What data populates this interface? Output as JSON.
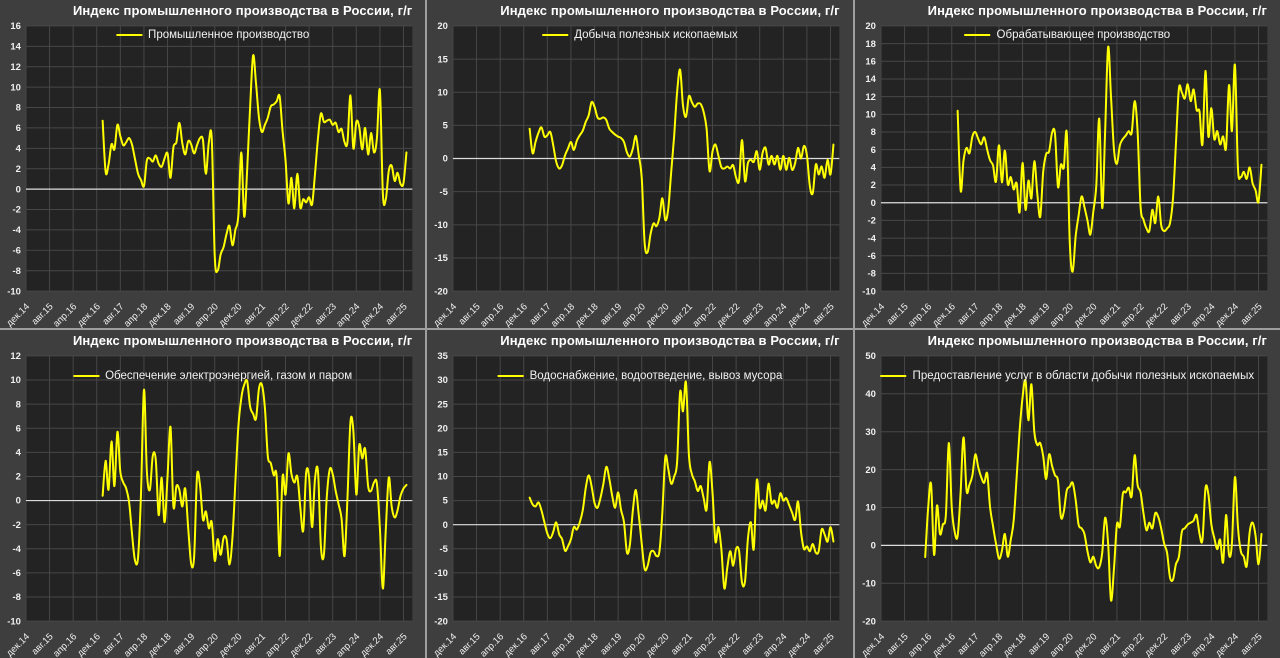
{
  "app": {
    "kind": "six-panel line chart dashboard",
    "colors": {
      "page_separator": "#9e9e9e",
      "panel_bg": "#3e3e3e",
      "plot_bg": "#232323",
      "grid": "#474747",
      "zero_line": "#dcdcdc",
      "text": "#f0f0f0",
      "title": "#ffffff",
      "series": "#ffff00"
    }
  },
  "x_axis": {
    "origin": "дек.14",
    "months_per_tick": 8,
    "domain_months": [
      0,
      131
    ],
    "tick_labels": [
      "дек.14",
      "авг.15",
      "апр.16",
      "дек.16",
      "авг.17",
      "апр.18",
      "дек.18",
      "авг.19",
      "апр.20",
      "дек.20",
      "авг.21",
      "апр.22",
      "дек.22",
      "авг.23",
      "апр.24",
      "дек.24",
      "авг.25"
    ]
  },
  "chart_data": [
    {
      "type": "line",
      "title": "Индекс промышленного производства в России, г/г",
      "ylim": [
        -10,
        16
      ],
      "y_step": 2,
      "grid": true,
      "legend_position": "top-center",
      "series": [
        {
          "name": "Промышленное производство",
          "color": "#ffff00",
          "start_month": 26,
          "values": [
            6.7,
            1.7,
            2.4,
            4.4,
            3.9,
            6.3,
            5.2,
            4.3,
            4.6,
            5.0,
            4.3,
            2.9,
            1.5,
            0.9,
            0.3,
            2.8,
            3.0,
            2.7,
            3.3,
            2.5,
            2.2,
            3.0,
            3.5,
            1.1,
            4.1,
            4.6,
            6.5,
            4.5,
            3.4,
            4.7,
            4.4,
            3.5,
            4.3,
            5.0,
            4.8,
            1.5,
            4.6,
            4.9,
            -6.6,
            -8.0,
            -6.4,
            -5.7,
            -4.4,
            -3.6,
            -5.5,
            -4.0,
            -2.6,
            3.6,
            -2.7,
            2.0,
            8.0,
            13.1,
            10.4,
            7.0,
            5.6,
            6.3,
            7.0,
            8.1,
            8.3,
            8.6,
            9.1,
            5.7,
            2.8,
            -1.4,
            1.1,
            -1.9,
            1.5,
            -1.8,
            -1.0,
            -1.3,
            -0.8,
            -1.5,
            1.5,
            5.0,
            7.4,
            6.6,
            6.7,
            6.8,
            6.3,
            6.5,
            5.6,
            5.9,
            4.6,
            4.6,
            9.2,
            4.0,
            6.6,
            6.1,
            3.9,
            6.0,
            3.4,
            5.5,
            3.6,
            5.0,
            9.7,
            -0.5,
            -1.0,
            1.8,
            2.3,
            0.8,
            1.6,
            0.5,
            0.6,
            3.6
          ]
        }
      ]
    },
    {
      "type": "line",
      "title": "Индекс промышленного производства в России, г/г",
      "ylim": [
        -20,
        20
      ],
      "y_step": 5,
      "grid": true,
      "legend_position": "top-center",
      "series": [
        {
          "name": "Добыча полезных ископаемых",
          "color": "#ffff00",
          "start_month": 26,
          "values": [
            4.5,
            0.8,
            2.5,
            3.9,
            4.7,
            3.3,
            3.5,
            4.0,
            2.0,
            -0.5,
            -1.5,
            -1.0,
            0.5,
            1.5,
            2.5,
            1.3,
            2.7,
            3.5,
            4.2,
            5.5,
            6.5,
            8.5,
            7.8,
            6.2,
            6.0,
            6.2,
            5.8,
            4.5,
            4.0,
            3.6,
            3.3,
            3.1,
            2.5,
            0.9,
            0.3,
            1.5,
            3.4,
            0.5,
            -3.0,
            -12.8,
            -14.1,
            -11.4,
            -9.8,
            -10.2,
            -8.9,
            -6.0,
            -9.3,
            -7.5,
            -2.0,
            3.5,
            10.0,
            13.4,
            8.0,
            6.3,
            9.4,
            8.5,
            7.8,
            8.3,
            8.2,
            7.0,
            4.4,
            -1.9,
            1.1,
            2.1,
            0.4,
            -1.3,
            -1.5,
            -1.2,
            -1.5,
            -1.0,
            -2.9,
            -3.3,
            2.8,
            -3.4,
            -0.7,
            -0.2,
            -0.5,
            1.1,
            -1.7,
            0.9,
            1.6,
            -0.9,
            0.4,
            -0.9,
            0.4,
            -1.7,
            0.4,
            -1.7,
            0.1,
            -1.7,
            -0.7,
            1.6,
            0,
            1.9,
            0.5,
            -4.2,
            -5.2,
            -0.9,
            -2.4,
            -1.2,
            -2.9,
            -0.2,
            -2.4,
            2.1
          ]
        }
      ]
    },
    {
      "type": "line",
      "title": "Индекс промышленного производства в России, г/г",
      "ylim": [
        -10,
        20
      ],
      "y_step": 2,
      "grid": true,
      "legend_position": "top-center",
      "series": [
        {
          "name": "Обрабатывающее производство",
          "color": "#ffff00",
          "start_month": 26,
          "values": [
            10.4,
            1.4,
            4.8,
            6.2,
            5.6,
            7.5,
            8.0,
            7.2,
            6.6,
            7.4,
            6.0,
            4.8,
            4.2,
            2.4,
            6.5,
            2.3,
            5.9,
            2.1,
            2.9,
            1.5,
            2.2,
            -1.1,
            4.5,
            -0.8,
            2.5,
            0.5,
            4.7,
            1.0,
            -1.6,
            3.5,
            5.5,
            5.8,
            7.9,
            7.8,
            1.8,
            4.3,
            4.0,
            7.9,
            -4.5,
            -7.8,
            -3.8,
            -1.5,
            0.7,
            -0.5,
            -2.0,
            -3.6,
            -1.0,
            2.0,
            9.5,
            -0.6,
            8.0,
            17.6,
            12.0,
            6.0,
            4.4,
            6.5,
            7.2,
            7.6,
            8.1,
            7.9,
            11.5,
            8.1,
            -0.4,
            -1.9,
            -2.9,
            -3.2,
            -0.8,
            -2.3,
            0.7,
            -2.5,
            -3.2,
            -2.9,
            -2.3,
            0.5,
            6.6,
            12.9,
            12.5,
            11.8,
            13.4,
            11.5,
            12.8,
            10.5,
            10.3,
            6.6,
            14.9,
            7.5,
            10.7,
            7.2,
            8.1,
            6.6,
            7.5,
            6.2,
            13.3,
            8.1,
            15.6,
            4.0,
            2.9,
            3.5,
            2.7,
            4.0,
            2.2,
            1.4,
            0.1,
            4.3
          ]
        }
      ]
    },
    {
      "type": "line",
      "title": "Индекс промышленного производства в России, г/г",
      "ylim": [
        -10,
        12
      ],
      "y_step": 2,
      "grid": true,
      "legend_position": "top-center",
      "series": [
        {
          "name": "Обеспечение электроэнергией, газом и паром",
          "color": "#ffff00",
          "start_month": 26,
          "values": [
            0.4,
            3.3,
            0.9,
            4.9,
            1.2,
            5.7,
            2.4,
            1.5,
            1.0,
            -0.2,
            -2.9,
            -5.0,
            -4.7,
            0.5,
            9.2,
            2.4,
            0.9,
            3.7,
            3.4,
            -1.2,
            1.9,
            -1.8,
            2.0,
            6.1,
            -0.5,
            1.2,
            0.9,
            -0.5,
            1.0,
            -2.3,
            -5.2,
            -4.7,
            2.0,
            1.3,
            -1.6,
            -0.9,
            -2.3,
            -1.8,
            -5.0,
            -3.2,
            -4.5,
            -3.1,
            -3.2,
            -5.3,
            -3.1,
            1.5,
            6.1,
            8.5,
            9.6,
            9.9,
            7.8,
            7.2,
            6.8,
            9.3,
            9.6,
            7.7,
            3.7,
            3.1,
            2.1,
            2.0,
            -4.6,
            2.0,
            0.5,
            3.9,
            2.2,
            1.5,
            2.0,
            -0.5,
            -2.5,
            2.3,
            1.9,
            -2.2,
            1.8,
            2.4,
            -3.8,
            -4.5,
            0.3,
            2.6,
            2.2,
            0.8,
            -0.3,
            -1.5,
            -4.6,
            0.2,
            6.5,
            5.8,
            0.5,
            4.6,
            3.5,
            4.3,
            1.2,
            0.8,
            1.5,
            1.4,
            -2.3,
            -7.3,
            -2.4,
            1.9,
            -0.5,
            -1.4,
            -0.8,
            0.4,
            1.0,
            1.3
          ]
        }
      ]
    },
    {
      "type": "line",
      "title": "Индекс промышленного производства в России, г/г",
      "ylim": [
        -20,
        35
      ],
      "y_step": 5,
      "grid": true,
      "legend_position": "top-center",
      "series": [
        {
          "name": "Водоснабжение, водоотведение, вывоз мусора",
          "color": "#ffff00",
          "start_month": 26,
          "values": [
            5.6,
            4.2,
            3.8,
            4.6,
            3.0,
            0.5,
            -1.8,
            -2.8,
            -1.5,
            0.5,
            -2.0,
            -3.0,
            -5.4,
            -4.5,
            -3.0,
            -0.5,
            -1.0,
            0.5,
            3.0,
            7.5,
            10.2,
            8.0,
            4.5,
            3.5,
            5.5,
            8.5,
            12.0,
            9.5,
            6.0,
            3.5,
            6.7,
            3.0,
            0.5,
            -5.8,
            -4.0,
            3.0,
            7.2,
            2.0,
            -4.0,
            -9.2,
            -8.5,
            -5.8,
            -5.5,
            -6.5,
            -5.5,
            2.5,
            14.0,
            11.5,
            8.5,
            10.0,
            13.0,
            27.5,
            23.5,
            29.5,
            14.5,
            10.5,
            9.0,
            7.0,
            8.0,
            5.5,
            3.2,
            13.0,
            6.5,
            -3.5,
            -0.5,
            -5.0,
            -13.2,
            -9.0,
            -5.5,
            -8.5,
            -5.0,
            -5.5,
            -12.0,
            -11.8,
            -3.0,
            0.5,
            -5.0,
            9.2,
            3.5,
            5.0,
            3.0,
            8.5,
            4.5,
            5.0,
            3.5,
            6.5,
            5.0,
            5.5,
            4.0,
            2.5,
            1.0,
            4.8,
            -1.5,
            -5.0,
            -4.5,
            -5.5,
            -4.0,
            -5.8,
            -5.5,
            -1.0,
            -2.0,
            -3.5,
            -0.5,
            -3.5
          ]
        }
      ]
    },
    {
      "type": "line",
      "title": "Индекс промышленного производства в России, г/г",
      "ylim": [
        -20,
        50
      ],
      "y_step": 10,
      "grid": true,
      "legend_position": "top-center",
      "series": [
        {
          "name": "Предоставление услуг в области добычи полезных ископаемых",
          "color": "#ffff00",
          "start_month": 15,
          "values": [
            -3.1,
            10.0,
            16.1,
            -2.5,
            10.5,
            3.0,
            5.5,
            8.0,
            27.0,
            10.0,
            3.5,
            2.5,
            14.0,
            28.5,
            14.5,
            16.0,
            18.5,
            24.0,
            20.5,
            18.0,
            16.5,
            19.0,
            10.0,
            5.0,
            0.5,
            -3.5,
            -1.5,
            3.0,
            -3.0,
            1.5,
            6.5,
            18.0,
            30.0,
            39.0,
            43.5,
            33.0,
            42.5,
            30.0,
            26.5,
            27.0,
            23.5,
            17.5,
            24.0,
            21.0,
            18.5,
            17.0,
            7.5,
            9.0,
            14.5,
            15.5,
            16.5,
            12.0,
            5.5,
            4.5,
            3.0,
            -1.5,
            -4.5,
            -3.0,
            -5.5,
            -5.8,
            -2.0,
            7.3,
            0.5,
            -14.5,
            -6.0,
            5.5,
            5.0,
            13.5,
            14.0,
            15.2,
            13.0,
            23.8,
            16.0,
            14.0,
            8.5,
            4.0,
            6.0,
            4.5,
            8.5,
            7.5,
            4.5,
            0.5,
            -2.0,
            -8.5,
            -9.0,
            -5.0,
            -3.0,
            3.5,
            4.5,
            5.5,
            6.0,
            6.5,
            8.0,
            3.0,
            1.5,
            15.0,
            13.5,
            5.5,
            2.0,
            -1.0,
            1.5,
            -4.5,
            8.0,
            -2.5,
            0.5,
            18.0,
            5.0,
            -1.5,
            -3.0,
            -5.5,
            3.5,
            6.0,
            2.5,
            -5.0,
            3.0
          ]
        }
      ]
    }
  ]
}
